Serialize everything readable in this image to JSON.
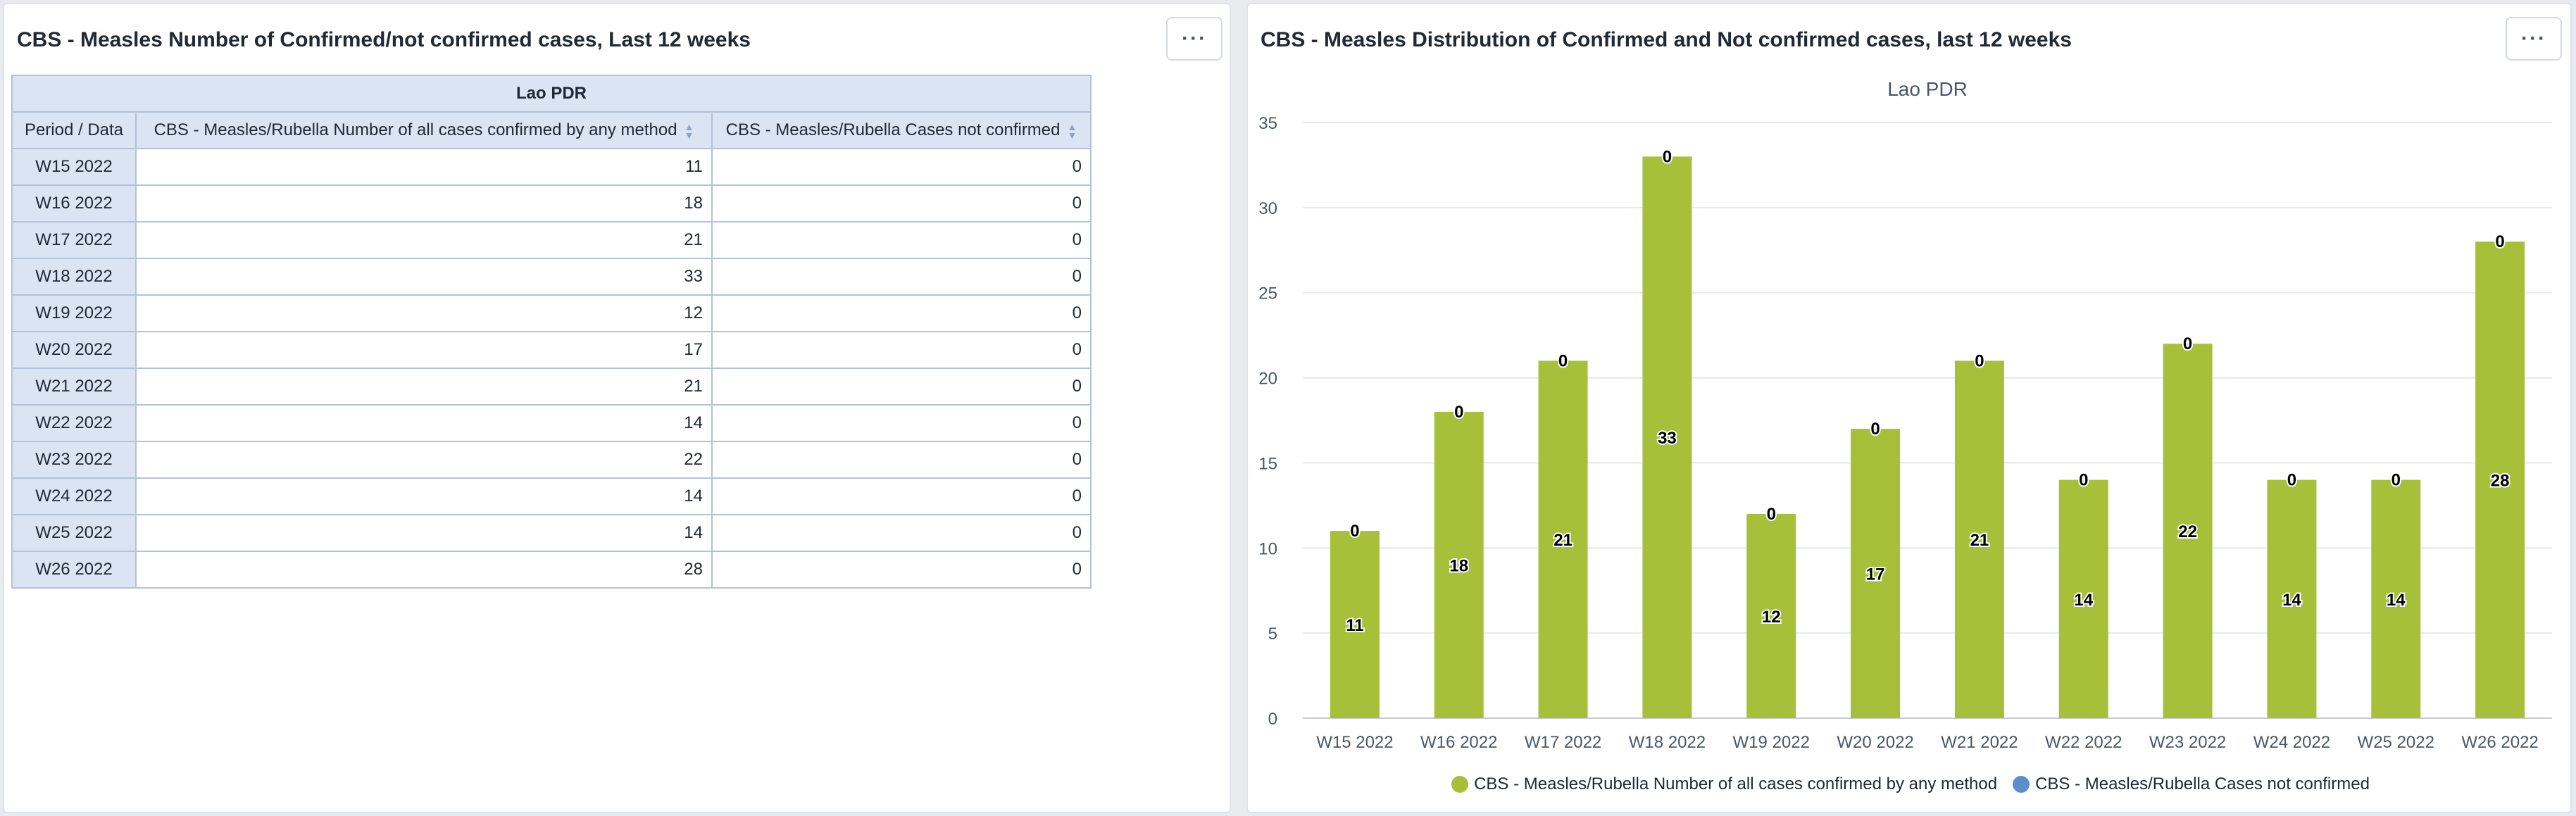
{
  "left_panel": {
    "title": "CBS - Measles Number of Confirmed/not confirmed cases, Last 12 weeks",
    "menu_label": "···",
    "table": {
      "org_unit": "Lao PDR",
      "corner_label": "Period / Data",
      "columns": [
        "CBS - Measles/Rubella Number of all cases confirmed by any method",
        "CBS - Measles/Rubella Cases not confirmed"
      ],
      "rows": [
        {
          "period": "W15 2022",
          "confirmed": "11",
          "not_confirmed": "0"
        },
        {
          "period": "W16 2022",
          "confirmed": "18",
          "not_confirmed": "0"
        },
        {
          "period": "W17 2022",
          "confirmed": "21",
          "not_confirmed": "0"
        },
        {
          "period": "W18 2022",
          "confirmed": "33",
          "not_confirmed": "0"
        },
        {
          "period": "W19 2022",
          "confirmed": "12",
          "not_confirmed": "0"
        },
        {
          "period": "W20 2022",
          "confirmed": "17",
          "not_confirmed": "0"
        },
        {
          "period": "W21 2022",
          "confirmed": "21",
          "not_confirmed": "0"
        },
        {
          "period": "W22 2022",
          "confirmed": "14",
          "not_confirmed": "0"
        },
        {
          "period": "W23 2022",
          "confirmed": "22",
          "not_confirmed": "0"
        },
        {
          "period": "W24 2022",
          "confirmed": "14",
          "not_confirmed": "0"
        },
        {
          "period": "W25 2022",
          "confirmed": "14",
          "not_confirmed": "0"
        },
        {
          "period": "W26 2022",
          "confirmed": "28",
          "not_confirmed": "0"
        }
      ]
    }
  },
  "right_panel": {
    "title": "CBS - Measles Distribution of Confirmed and Not confirmed cases, last 12 weeks",
    "menu_label": "···"
  },
  "chart_data": {
    "type": "bar",
    "stacked": true,
    "subtitle": "Lao PDR",
    "categories": [
      "W15 2022",
      "W16 2022",
      "W17 2022",
      "W18 2022",
      "W19 2022",
      "W20 2022",
      "W21 2022",
      "W22 2022",
      "W23 2022",
      "W24 2022",
      "W25 2022",
      "W26 2022"
    ],
    "series": [
      {
        "name": "CBS - Measles/Rubella Number of all cases confirmed by any method",
        "color": "#a8bf3a",
        "values": [
          11,
          18,
          21,
          33,
          12,
          17,
          21,
          14,
          22,
          14,
          14,
          28
        ]
      },
      {
        "name": "CBS - Measles/Rubella Cases not confirmed",
        "color": "#5b8fc9",
        "values": [
          0,
          0,
          0,
          0,
          0,
          0,
          0,
          0,
          0,
          0,
          0,
          0
        ]
      }
    ],
    "ylim": [
      0,
      35
    ],
    "yticks": [
      0,
      5,
      10,
      15,
      20,
      25,
      30,
      35
    ],
    "grid": true,
    "legend": "bottom-center"
  }
}
